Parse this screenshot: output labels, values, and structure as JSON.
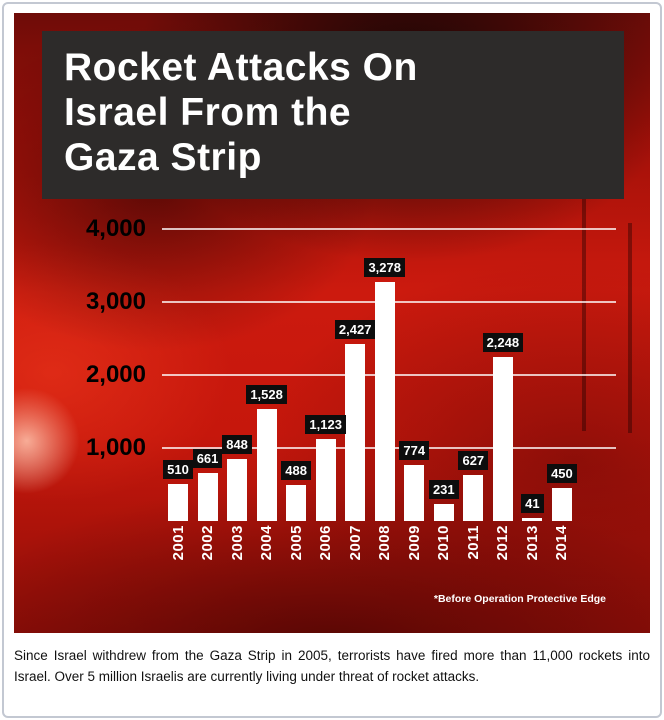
{
  "colors": {
    "background_red": "#c6170c",
    "header_bg": "#2d2b2a",
    "bar_color": "#ffffff",
    "value_label_bg": "#0d0d0d",
    "value_label_text": "#ffffff",
    "axis_label_text": "#000000"
  },
  "header": {
    "title_lines": [
      "Rocket Attacks On",
      "Israel From the",
      "Gaza Strip"
    ]
  },
  "chart_data": {
    "type": "bar",
    "title": "Rocket Attacks On Israel From the Gaza Strip",
    "categories": [
      "2001",
      "2002",
      "2003",
      "2004",
      "2005",
      "2006",
      "2007",
      "2008",
      "2009",
      "2010",
      "2011",
      "2012",
      "2013",
      "2014"
    ],
    "values": [
      510,
      661,
      848,
      1528,
      488,
      1123,
      2427,
      3278,
      774,
      231,
      627,
      2248,
      41,
      450
    ],
    "value_labels": [
      "510",
      "661",
      "848",
      "1,528",
      "488",
      "1,123",
      "2,427",
      "3,278",
      "774",
      "231",
      "627",
      "2,248",
      "41",
      "450"
    ],
    "xlabel": "",
    "ylabel": "",
    "ylim": [
      0,
      4000
    ],
    "yticks": [
      1000,
      2000,
      3000,
      4000
    ],
    "ytick_labels": [
      "1,000",
      "2,000",
      "3,000",
      "4,000"
    ],
    "grid": true,
    "legend": "none",
    "footnote": "*Before Operation Protective Edge"
  },
  "caption": {
    "text": "Since Israel withdrew from the Gaza Strip in 2005, terrorists have fired more than 11,000 rockets into Israel. Over 5 million Israelis are currently living under threat of rocket attacks."
  }
}
